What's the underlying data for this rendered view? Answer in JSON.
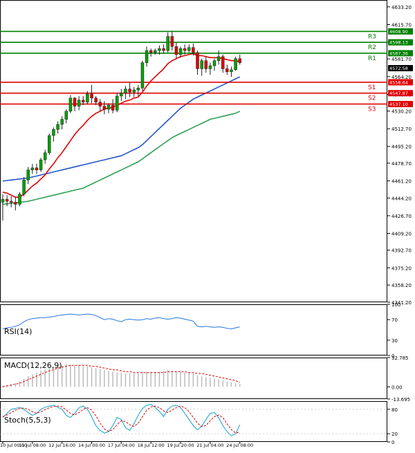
{
  "colors": {
    "background": "#ffffff",
    "frame": "#000000",
    "bull_candle": "#00a000",
    "bear_candle": "#dd0000",
    "ema_fast": "#e00000",
    "ema_mid": "#2255cc",
    "ema_slow": "#2e9e53",
    "resistance": "#008000",
    "support": "#e00000",
    "current_price": "#000000",
    "rsi": "#2277dd",
    "macd_hist": "#bbbbbb",
    "macd_signal": "#dd0000",
    "stoch_main": "#22aacc",
    "stoch_signal": "#dd0000"
  },
  "chart_data": {
    "type": "candlestick",
    "main": {
      "ylim": [
        4341.2,
        4639.96
      ],
      "y_ticks": [
        4633.2,
        4615.7,
        4598.2,
        4581.7,
        4564.2,
        4546.7,
        4530.2,
        4512.7,
        4495.2,
        4478.7,
        4461.2,
        4444.2,
        4426.7,
        4409.2,
        4392.7,
        4375.2,
        4358.2,
        4341.2
      ],
      "y_tick_labels": [
        "4633.20",
        "4615.70",
        "4598.20",
        "4581.70",
        "4564.20",
        "4546.70",
        "4530.20",
        "4512.70",
        "4495.20",
        "4478.70",
        "4461.20",
        "4444.20",
        "4426.70",
        "4409.20",
        "4392.70",
        "4375.20",
        "4358.20",
        "4341.20"
      ],
      "levels": [
        {
          "name": "R3",
          "value": 4608.9,
          "label": "4608.90",
          "kind": "resistance"
        },
        {
          "name": "R2",
          "value": 4598.13,
          "label": "4598.13",
          "kind": "resistance"
        },
        {
          "name": "R1",
          "value": 4587.36,
          "label": "4587.36",
          "kind": "resistance"
        },
        {
          "name": "S1",
          "value": 4558.64,
          "label": "4558.64",
          "kind": "support"
        },
        {
          "name": "S2",
          "value": 4547.87,
          "label": "4547.87",
          "kind": "support"
        },
        {
          "name": "S3",
          "value": 4537.1,
          "label": "4537.10",
          "kind": "support"
        }
      ],
      "current_price": {
        "value": 4572.58,
        "label": "4572.58"
      },
      "candles": [
        [
          4440,
          4448,
          4422,
          4443
        ],
        [
          4443,
          4447,
          4436,
          4441
        ],
        [
          4441,
          4446,
          4435,
          4440
        ],
        [
          4440,
          4445,
          4432,
          4438
        ],
        [
          4438,
          4450,
          4436,
          4448
        ],
        [
          4448,
          4465,
          4446,
          4462
        ],
        [
          4462,
          4475,
          4458,
          4472
        ],
        [
          4472,
          4478,
          4468,
          4474
        ],
        [
          4474,
          4478,
          4468,
          4472
        ],
        [
          4472,
          4484,
          4470,
          4482
        ],
        [
          4482,
          4492,
          4478,
          4489
        ],
        [
          4489,
          4508,
          4487,
          4506
        ],
        [
          4506,
          4514,
          4500,
          4512
        ],
        [
          4512,
          4520,
          4508,
          4517
        ],
        [
          4517,
          4525,
          4512,
          4522
        ],
        [
          4522,
          4532,
          4518,
          4530
        ],
        [
          4530,
          4546,
          4528,
          4543
        ],
        [
          4543,
          4544,
          4530,
          4535
        ],
        [
          4535,
          4545,
          4531,
          4541
        ],
        [
          4541,
          4545,
          4536,
          4539
        ],
        [
          4539,
          4550,
          4537,
          4547
        ],
        [
          4547,
          4556,
          4538,
          4543
        ],
        [
          4543,
          4545,
          4536,
          4539
        ],
        [
          4539,
          4542,
          4530,
          4535
        ],
        [
          4535,
          4540,
          4527,
          4532
        ],
        [
          4532,
          4538,
          4528,
          4536
        ],
        [
          4536,
          4542,
          4528,
          4531
        ],
        [
          4531,
          4548,
          4529,
          4545
        ],
        [
          4545,
          4552,
          4540,
          4548
        ],
        [
          4548,
          4555,
          4542,
          4552
        ],
        [
          4552,
          4558,
          4544,
          4549
        ],
        [
          4549,
          4554,
          4544,
          4551
        ],
        [
          4551,
          4556,
          4545,
          4553
        ],
        [
          4553,
          4580,
          4550,
          4578
        ],
        [
          4578,
          4594,
          4574,
          4590
        ],
        [
          4590,
          4592,
          4584,
          4588
        ],
        [
          4588,
          4592,
          4586,
          4590
        ],
        [
          4590,
          4595,
          4586,
          4592
        ],
        [
          4592,
          4596,
          4587,
          4590
        ],
        [
          4590,
          4608,
          4588,
          4604
        ],
        [
          4604,
          4609,
          4590,
          4594
        ],
        [
          4594,
          4598,
          4582,
          4586
        ],
        [
          4586,
          4594,
          4583,
          4592
        ],
        [
          4592,
          4596,
          4586,
          4590
        ],
        [
          4590,
          4596,
          4588,
          4593
        ],
        [
          4593,
          4597,
          4585,
          4588
        ],
        [
          4588,
          4590,
          4566,
          4572
        ],
        [
          4572,
          4582,
          4565,
          4580
        ],
        [
          4580,
          4584,
          4568,
          4572
        ],
        [
          4572,
          4578,
          4566,
          4575
        ],
        [
          4575,
          4582,
          4570,
          4580
        ],
        [
          4580,
          4590,
          4576,
          4584
        ],
        [
          4584,
          4586,
          4568,
          4572
        ],
        [
          4572,
          4576,
          4566,
          4569
        ],
        [
          4569,
          4574,
          4564,
          4571
        ],
        [
          4571,
          4584,
          4570,
          4582
        ],
        [
          4582,
          4586,
          4576,
          4578
        ]
      ],
      "ema_fast": [
        4450,
        4449,
        4447,
        4445,
        4445,
        4448,
        4452,
        4456,
        4459,
        4463,
        4467,
        4473,
        4478,
        4484,
        4489,
        4495,
        4501,
        4507,
        4512,
        4516,
        4521,
        4525,
        4528,
        4530,
        4532,
        4533,
        4534,
        4536,
        4538,
        4540,
        4541,
        4543,
        4544,
        4549,
        4555,
        4560,
        4564,
        4568,
        4572,
        4577,
        4580,
        4582,
        4584,
        4585,
        4586,
        4587,
        4585,
        4585,
        4584,
        4583,
        4583,
        4583,
        4582,
        4581,
        4580,
        4580,
        4579
      ],
      "ema_mid": [
        4461,
        4461.5,
        4462,
        4462.5,
        4463,
        4463.5,
        4464,
        4465,
        4466,
        4467,
        4468,
        4469,
        4470,
        4471,
        4472,
        4473,
        4474,
        4475,
        4476,
        4477,
        4478,
        4479,
        4480,
        4481,
        4482,
        4483,
        4484,
        4485,
        4486,
        4488,
        4490,
        4492,
        4494,
        4497,
        4501,
        4505,
        4509,
        4513,
        4517,
        4521,
        4525,
        4529,
        4533,
        4536,
        4539,
        4542,
        4544,
        4546,
        4548,
        4550,
        4552,
        4554,
        4556,
        4558,
        4560,
        4562,
        4564
      ],
      "ema_slow": [
        4438,
        4438.5,
        4439,
        4439.5,
        4440,
        4440.5,
        4441,
        4442,
        4443,
        4444,
        4445,
        4446,
        4447,
        4448,
        4449,
        4450,
        4451,
        4452,
        4453,
        4454,
        4456,
        4458,
        4460,
        4462,
        4464,
        4466,
        4468,
        4470,
        4472,
        4474,
        4476,
        4478,
        4480,
        4483,
        4486,
        4489,
        4492,
        4495,
        4498,
        4501,
        4504,
        4506,
        4508,
        4510,
        4512,
        4514,
        4516,
        4518,
        4520,
        4522,
        4523,
        4524,
        4525,
        4526,
        4527,
        4528,
        4530
      ]
    },
    "x_labels": [
      "10 Jul 00:00",
      "11 Jul 08:00",
      "12 Jul 16:00",
      "14 Jul 00:00",
      "17 Jul 04:00",
      "18 Jul 12:00",
      "19 Jul 20:00",
      "21 Jul 04:00",
      "24 Jul 08:00"
    ],
    "rsi": {
      "title": "RSI(14)",
      "ylim": [
        0,
        100
      ],
      "ticks": [
        100,
        70,
        30,
        0
      ],
      "tick_labels": [
        "100",
        "70",
        "30",
        "0"
      ],
      "values": [
        52,
        54,
        55,
        57,
        60,
        66,
        70,
        72,
        73,
        74,
        74,
        75,
        76,
        78,
        79,
        80,
        81,
        80,
        79,
        80,
        81,
        80,
        78,
        74,
        70,
        72,
        71,
        68,
        66,
        70,
        71,
        70,
        69,
        70,
        72,
        71,
        73,
        74,
        72,
        71,
        72,
        74,
        73,
        71,
        69,
        67,
        57,
        56,
        57,
        56,
        55,
        56,
        55,
        53,
        52,
        54,
        56
      ]
    },
    "macd": {
      "title": "MACD(12,26,9)",
      "ylim": [
        -13.695,
        32.785
      ],
      "ticks": [
        32.785,
        0.0,
        -13.695
      ],
      "tick_labels": [
        "32.785",
        "0.00",
        "-13.695"
      ],
      "histogram": [
        1,
        2,
        3,
        4,
        6,
        9,
        12,
        14,
        16,
        18,
        20,
        21,
        22,
        23,
        24,
        25,
        25,
        24,
        24,
        23,
        23,
        22,
        21,
        20,
        19,
        18,
        17,
        16,
        16,
        15,
        15,
        15,
        15,
        16,
        17,
        17,
        17,
        17,
        18,
        19,
        18,
        17,
        17,
        16,
        16,
        15,
        13,
        12,
        11,
        10,
        9,
        8,
        7,
        6,
        5,
        4,
        3
      ],
      "signal": [
        0,
        1,
        2,
        3,
        4,
        6,
        8,
        10,
        12,
        14,
        16,
        18,
        19,
        21,
        22,
        23,
        24,
        24,
        24,
        24,
        24,
        23,
        23,
        22,
        21,
        20,
        19,
        19,
        18,
        17,
        17,
        16,
        16,
        16,
        16,
        16,
        16,
        16,
        16,
        17,
        17,
        17,
        17,
        17,
        16,
        16,
        15,
        15,
        14,
        13,
        12,
        11,
        10,
        9,
        8,
        7,
        5
      ]
    },
    "stoch": {
      "title": "Stoch(5,5,3)",
      "ylim": [
        0,
        100
      ],
      "ticks": [
        80,
        20,
        0
      ],
      "tick_labels": [
        "80",
        "20",
        "0"
      ],
      "k": [
        60,
        70,
        80,
        82,
        85,
        80,
        72,
        65,
        70,
        80,
        85,
        88,
        90,
        85,
        80,
        65,
        60,
        70,
        84,
        88,
        80,
        62,
        40,
        28,
        22,
        25,
        40,
        60,
        55,
        35,
        28,
        45,
        65,
        82,
        90,
        92,
        85,
        75,
        62,
        80,
        88,
        90,
        85,
        70,
        55,
        40,
        30,
        38,
        55,
        70,
        72,
        60,
        40,
        25,
        15,
        20,
        42
      ],
      "d": [
        62,
        66,
        72,
        78,
        82,
        83,
        80,
        74,
        70,
        74,
        79,
        84,
        87,
        88,
        86,
        78,
        70,
        66,
        72,
        80,
        84,
        78,
        64,
        46,
        32,
        26,
        30,
        42,
        52,
        50,
        42,
        38,
        46,
        62,
        78,
        86,
        88,
        84,
        76,
        72,
        78,
        84,
        88,
        84,
        74,
        60,
        46,
        38,
        40,
        52,
        62,
        66,
        60,
        44,
        30,
        22,
        24
      ]
    }
  }
}
